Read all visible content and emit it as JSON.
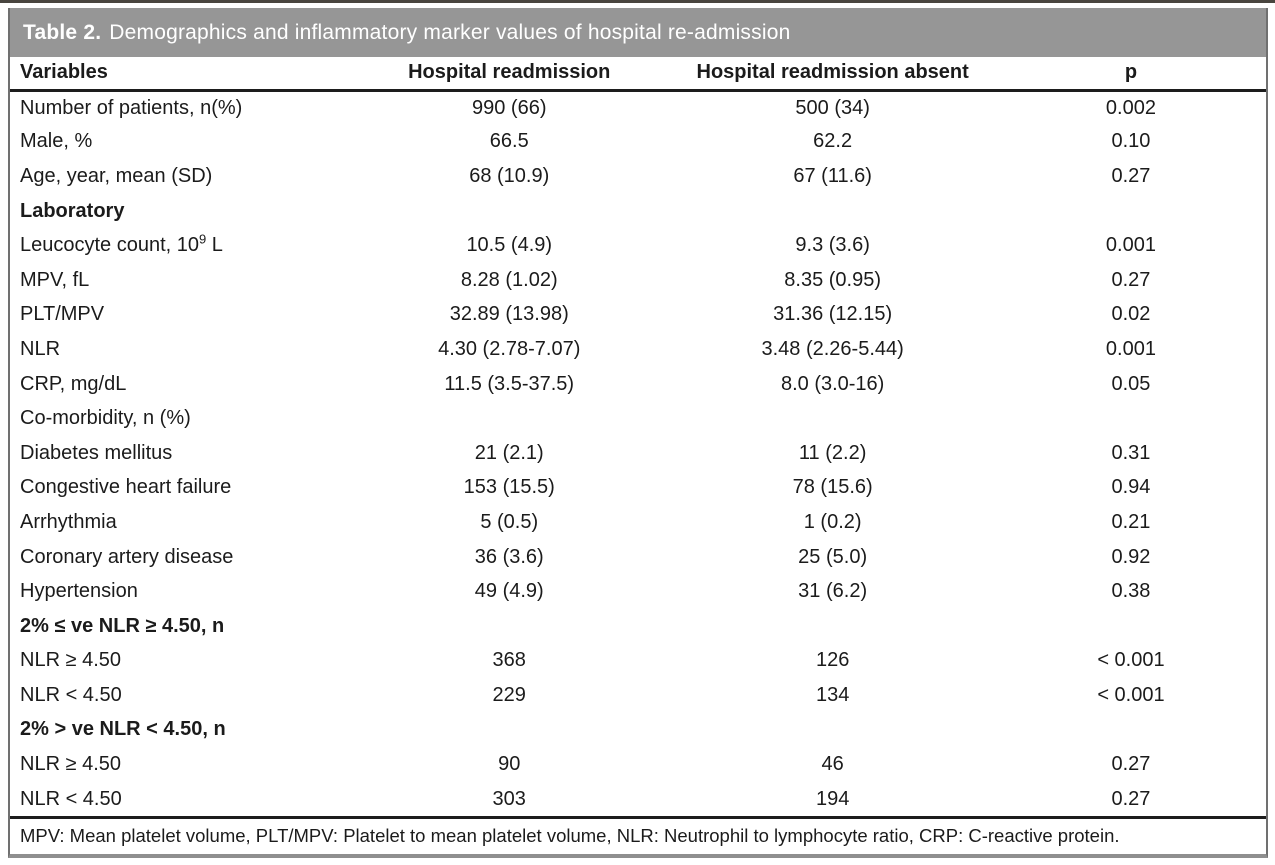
{
  "table": {
    "title": {
      "label": "Table 2.",
      "text": "Demographics and inflammatory marker values of hospital re-admission"
    },
    "columns": [
      "Variables",
      "Hospital readmission",
      "Hospital readmission absent",
      "p"
    ],
    "rows": [
      {
        "type": "data",
        "label": "Number of patients, n(%)",
        "readmission": "990 (66)",
        "no_readmission": "500 (34)",
        "p": "0.002"
      },
      {
        "type": "data",
        "label": "Male, %",
        "readmission": "66.5",
        "no_readmission": "62.2",
        "p": "0.10"
      },
      {
        "type": "data",
        "label": "Age, year, mean (SD)",
        "readmission": "68 (10.9)",
        "no_readmission": "67 (11.6)",
        "p": "0.27"
      },
      {
        "type": "section",
        "label": "Laboratory",
        "readmission": "",
        "no_readmission": "",
        "p": ""
      },
      {
        "type": "data",
        "label": "Leucocyte count, 10^9 L",
        "readmission": "10.5 (4.9)",
        "no_readmission": "9.3 (3.6)",
        "p": "0.001"
      },
      {
        "type": "data",
        "label": "MPV, fL",
        "readmission": "8.28 (1.02)",
        "no_readmission": "8.35 (0.95)",
        "p": "0.27"
      },
      {
        "type": "data",
        "label": "PLT/MPV",
        "readmission": "32.89 (13.98)",
        "no_readmission": "31.36 (12.15)",
        "p": "0.02"
      },
      {
        "type": "data",
        "label": "NLR",
        "readmission": "4.30 (2.78-7.07)",
        "no_readmission": "3.48 (2.26-5.44)",
        "p": "0.001"
      },
      {
        "type": "data",
        "label": "CRP, mg/dL",
        "readmission": "11.5 (3.5-37.5)",
        "no_readmission": "8.0 (3.0-16)",
        "p": "0.05"
      },
      {
        "type": "plain",
        "label": "Co-morbidity, n (%)",
        "readmission": "",
        "no_readmission": "",
        "p": ""
      },
      {
        "type": "data",
        "label": "Diabetes mellitus",
        "readmission": "21 (2.1)",
        "no_readmission": "11 (2.2)",
        "p": "0.31"
      },
      {
        "type": "data",
        "label": "Congestive heart failure",
        "readmission": "153 (15.5)",
        "no_readmission": "78 (15.6)",
        "p": "0.94"
      },
      {
        "type": "data",
        "label": "Arrhythmia",
        "readmission": "5 (0.5)",
        "no_readmission": "1 (0.2)",
        "p": "0.21"
      },
      {
        "type": "data",
        "label": "Coronary artery disease",
        "readmission": "36 (3.6)",
        "no_readmission": "25 (5.0)",
        "p": "0.92"
      },
      {
        "type": "data",
        "label": "Hypertension",
        "readmission": "49 (4.9)",
        "no_readmission": "31 (6.2)",
        "p": "0.38"
      },
      {
        "type": "section",
        "label": "2% ≤ ve NLR ≥ 4.50, n",
        "readmission": "",
        "no_readmission": "",
        "p": ""
      },
      {
        "type": "data",
        "label": "NLR ≥ 4.50",
        "readmission": "368",
        "no_readmission": "126",
        "p": "< 0.001"
      },
      {
        "type": "data",
        "label": "NLR < 4.50",
        "readmission": "229",
        "no_readmission": "134",
        "p": "< 0.001"
      },
      {
        "type": "section",
        "label": "2% > ve NLR < 4.50, n",
        "readmission": "",
        "no_readmission": "",
        "p": ""
      },
      {
        "type": "data",
        "label": "NLR ≥ 4.50",
        "readmission": "90",
        "no_readmission": "46",
        "p": "0.27"
      },
      {
        "type": "data",
        "label": "NLR < 4.50",
        "readmission": "303",
        "no_readmission": "194",
        "p": "0.27"
      }
    ],
    "footnote": "MPV: Mean platelet volume, PLT/MPV: Platelet to mean platelet volume, NLR: Neutrophil to lymphocyte ratio, CRP: C-reactive protein.",
    "colors": {
      "title_bar": "#969696",
      "title_text": "#ffffff",
      "rule": "#1d1d1d",
      "side_border": "#707070",
      "bottom_border": "#8f8f8f",
      "top_line": "#49453f"
    }
  }
}
